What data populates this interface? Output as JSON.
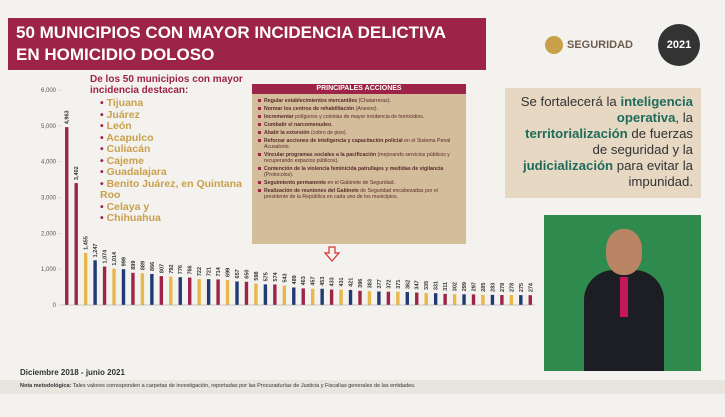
{
  "header": {
    "title_lines": [
      "50 MUNICIPIOS CON MAYOR INCIDENCIA DELICTIVA",
      "EN HOMICIDIO DOLOSO"
    ]
  },
  "logos": {
    "seguridad": "SEGURIDAD",
    "year": "2021"
  },
  "chart_data": {
    "type": "bar",
    "categories": [
      null,
      null,
      null,
      null,
      null,
      null,
      null,
      null,
      null,
      null,
      null,
      null,
      null,
      null,
      null,
      null,
      null,
      null,
      null,
      null,
      null,
      null,
      null,
      null,
      null,
      null,
      null,
      null,
      null,
      null,
      null,
      null,
      null,
      null,
      null,
      null,
      null,
      null,
      null,
      null,
      null,
      null,
      null,
      null,
      null,
      null,
      null,
      null,
      null,
      null
    ],
    "values": [
      4963,
      3402,
      1455,
      1247,
      1074,
      1014,
      999,
      899,
      889,
      866,
      807,
      792,
      776,
      766,
      722,
      721,
      714,
      699,
      657,
      650,
      598,
      575,
      574,
      543,
      489,
      463,
      457,
      453,
      433,
      431,
      421,
      396,
      383,
      377,
      372,
      371,
      362,
      347,
      335,
      331,
      311,
      302,
      299,
      297,
      285,
      283,
      278,
      278,
      275,
      274
    ],
    "value_labels": [
      "4,963",
      "3,402",
      "1,455",
      "1,247",
      "1,074",
      "1,014",
      "999",
      "899",
      "889",
      "866",
      "807",
      "792",
      "776",
      "766",
      "722",
      "721",
      "714",
      "699",
      "657",
      "650",
      "598",
      "575",
      "574",
      "543",
      "489",
      "463",
      "457",
      "453",
      "433",
      "431",
      "421",
      "396",
      "383",
      "377",
      "372",
      "371",
      "362",
      "347",
      "335",
      "331",
      "311",
      "302",
      "299",
      "297",
      "285",
      "283",
      "278",
      "278",
      "275",
      "274"
    ],
    "colors": [
      "#9d2449",
      "#9d2449",
      "#e8b84a",
      "#1f3b73",
      "#9d2449",
      "#e8b84a",
      "#1f3b73",
      "#9d2449",
      "#e8b84a",
      "#1f3b73",
      "#9d2449",
      "#e8b84a",
      "#1f3b73",
      "#9d2449",
      "#e8b84a",
      "#1f3b73",
      "#9d2449",
      "#e8b84a",
      "#1f3b73",
      "#9d2449",
      "#e8b84a",
      "#1f3b73",
      "#9d2449",
      "#e8b84a",
      "#1f3b73",
      "#9d2449",
      "#e8b84a",
      "#1f3b73",
      "#9d2449",
      "#e8b84a",
      "#1f3b73",
      "#9d2449",
      "#e8b84a",
      "#1f3b73",
      "#9d2449",
      "#e8b84a",
      "#1f3b73",
      "#9d2449",
      "#e8b84a",
      "#1f3b73",
      "#9d2449",
      "#e8b84a",
      "#1f3b73",
      "#9d2449",
      "#e8b84a",
      "#1f3b73",
      "#9d2449",
      "#e8b84a",
      "#1f3b73",
      "#9d2449"
    ],
    "ylim": [
      0,
      6000
    ],
    "yticks": [
      0,
      {
        "value": 1000,
        "label": "1,000"
      },
      {
        "value": 2000,
        "label": "2,000"
      },
      {
        "value": 3000,
        "label": "3,000"
      },
      {
        "value": 4000,
        "label": "4,000"
      },
      {
        "value": 5000,
        "label": "5,000"
      },
      {
        "value": 6000,
        "label": "6,000"
      }
    ]
  },
  "highlights": {
    "intro": "De los 50 municipios con mayor incidencia destacan:",
    "cities": [
      "Tijuana",
      "Juárez",
      "León",
      "Acapulco",
      "Culiacán",
      "Cajeme",
      "Guadalajara",
      "Benito Juárez, en Quintana Roo",
      "Celaya y",
      "Chihuahua"
    ]
  },
  "actions": {
    "title": "PRINCIPALES ACCIONES",
    "items": [
      {
        "strong": "Regular establecimientos mercantiles",
        "rest": "(Chatarreras)."
      },
      {
        "strong": "Normar los centros de rehabilitación",
        "rest": "(Anexos)."
      },
      {
        "strong": "Incrementar",
        "rest": "polígonos y colonias de mayor incidencia de homicidios."
      },
      {
        "strong": "Combatir el narcomenudeo.",
        "rest": ""
      },
      {
        "strong": "Abatir la extorsión",
        "rest": "(cobro de piso)."
      },
      {
        "strong": "Reforzar acciones de inteligencia y capacitación policial",
        "rest": "en el Sistema Penal Acusatorio."
      },
      {
        "strong": "Vincular programas sociales a la pacificación",
        "rest": "(mejorando servicios públicos y recuperando espacios públicos)."
      },
      {
        "strong": "Contención de la violencia feminicida patrullajes y medidas de vigilancia",
        "rest": "(Protocolos)."
      },
      {
        "strong": "Seguimiento permanente",
        "rest": "en el Gabinete de Seguridad."
      },
      {
        "strong": "Realización de reuniones del Gabinete",
        "rest": "de Seguridad encabezadas por el presidente de la República en cada uno de los municipios."
      }
    ]
  },
  "message": {
    "segments": [
      {
        "text": "Se fortalecerá la ",
        "emphasis": false
      },
      {
        "text": "inteligencia operativa",
        "emphasis": true
      },
      {
        "text": ", la ",
        "emphasis": false
      },
      {
        "text": "territorialización",
        "emphasis": true
      },
      {
        "text": " de fuerzas de seguridad y la ",
        "emphasis": false
      },
      {
        "text": "judicialización",
        "emphasis": true
      },
      {
        "text": " para evitar la impunidad.",
        "emphasis": false
      }
    ]
  },
  "footer": {
    "period": "Diciembre 2018 - junio 2021",
    "note_label": "Nota metodológica:",
    "note": "Tales valores corresponden a carpetas de investigación, reportadas por las Procuradurías de Justicia y Fiscalías generales de las entidades."
  }
}
